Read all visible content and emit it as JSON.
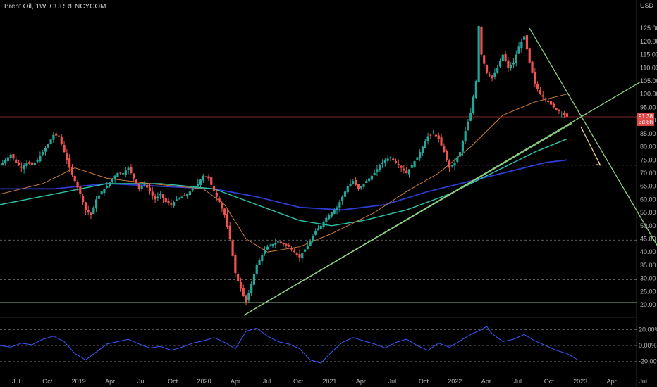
{
  "header": {
    "title": "Brent Oil, 1W, CURRENCYCOM"
  },
  "colors": {
    "up": "#26a69a",
    "down": "#ef5350",
    "grid": "#2a2a2a",
    "trend": "#8ed081",
    "ma_short": "#c77b3c",
    "ma_mid": "#2ec4a8",
    "ma_long": "#2f3ccf",
    "osc": "#3e57ff",
    "arrow": "#f2e29b",
    "price_line": "#7a2a2a"
  },
  "chart_data": {
    "type": "line",
    "title": "Brent Oil, 1W, CURRENCYCOM",
    "currency": "USD",
    "price_axis": {
      "ticks": [
        "125.00",
        "120.00",
        "115.00",
        "110.00",
        "105.00",
        "100.00",
        "95.00",
        "90.00",
        "85.00",
        "80.00",
        "75.00",
        "70.00",
        "65.00",
        "60.00",
        "55.00",
        "50.00",
        "45.00",
        "40.00",
        "35.00",
        "30.00",
        "25.00",
        "20.00"
      ],
      "range": [
        16,
        132
      ]
    },
    "time_axis": {
      "labels": [
        "Jul",
        "Oct",
        "2019",
        "Apr",
        "Jul",
        "Oct",
        "2020",
        "Apr",
        "Jul",
        "Oct",
        "2021",
        "Apr",
        "Jul",
        "Oct",
        "2022",
        "Apr",
        "Jul",
        "Oct",
        "2023",
        "Apr",
        "Jul"
      ],
      "range": [
        0,
        59.5
      ]
    },
    "last_price": {
      "value": "91.38",
      "countdown": "3d 8h",
      "numeric": 91.38
    },
    "horizontal_levels": [
      {
        "price": 73,
        "style": "dashed"
      },
      {
        "price": 44.5,
        "style": "dashed"
      },
      {
        "price": 29.5,
        "style": "dashed"
      },
      {
        "price": 20.8,
        "style": "solid"
      }
    ],
    "price_path": [
      [
        0,
        73
      ],
      [
        0.5,
        75
      ],
      [
        1,
        77
      ],
      [
        1.5,
        74
      ],
      [
        2,
        72
      ],
      [
        2.5,
        74
      ],
      [
        3,
        73
      ],
      [
        3.5,
        75
      ],
      [
        4,
        78
      ],
      [
        4.5,
        81
      ],
      [
        5,
        84.5
      ],
      [
        5.5,
        84
      ],
      [
        6,
        78
      ],
      [
        6.5,
        72
      ],
      [
        7,
        67
      ],
      [
        7.5,
        62
      ],
      [
        8,
        56
      ],
      [
        8.5,
        54
      ],
      [
        9,
        60
      ],
      [
        9.5,
        63
      ],
      [
        10,
        65
      ],
      [
        10.5,
        68
      ],
      [
        11,
        70
      ],
      [
        11.5,
        70
      ],
      [
        12,
        72
      ],
      [
        12.5,
        68
      ],
      [
        13,
        64
      ],
      [
        13.5,
        66
      ],
      [
        14,
        63
      ],
      [
        14.5,
        60
      ],
      [
        15,
        62
      ],
      [
        15.5,
        59
      ],
      [
        16,
        58
      ],
      [
        16.5,
        60
      ],
      [
        17,
        61
      ],
      [
        17.5,
        62
      ],
      [
        18,
        64
      ],
      [
        18.5,
        66
      ],
      [
        19,
        69
      ],
      [
        19.5,
        68
      ],
      [
        20,
        63
      ],
      [
        20.5,
        59
      ],
      [
        21,
        54
      ],
      [
        21.5,
        45
      ],
      [
        22,
        32
      ],
      [
        22.5,
        26
      ],
      [
        23,
        21
      ],
      [
        23.5,
        28
      ],
      [
        24,
        35
      ],
      [
        24.5,
        39
      ],
      [
        25,
        42
      ],
      [
        25.5,
        43
      ],
      [
        26,
        44
      ],
      [
        26.5,
        43
      ],
      [
        27,
        42
      ],
      [
        27.5,
        40
      ],
      [
        28,
        38
      ],
      [
        28.5,
        41
      ],
      [
        29,
        44
      ],
      [
        29.5,
        48
      ],
      [
        30,
        50
      ],
      [
        30.5,
        53
      ],
      [
        31,
        55
      ],
      [
        31.5,
        57
      ],
      [
        32,
        61
      ],
      [
        32.5,
        65
      ],
      [
        33,
        67
      ],
      [
        33.5,
        64
      ],
      [
        34,
        66
      ],
      [
        34.5,
        68
      ],
      [
        35,
        70
      ],
      [
        35.5,
        73
      ],
      [
        36,
        75
      ],
      [
        36.5,
        76
      ],
      [
        37,
        74
      ],
      [
        37.5,
        72
      ],
      [
        38,
        70
      ],
      [
        38.5,
        73
      ],
      [
        39,
        76
      ],
      [
        39.5,
        80
      ],
      [
        40,
        84
      ],
      [
        40.5,
        85
      ],
      [
        41,
        83
      ],
      [
        41.5,
        78
      ],
      [
        42,
        72
      ],
      [
        42.5,
        74
      ],
      [
        43,
        78
      ],
      [
        43.5,
        86
      ],
      [
        44,
        93
      ],
      [
        44.5,
        105
      ],
      [
        44.7,
        128
      ],
      [
        45,
        115
      ],
      [
        45.5,
        108
      ],
      [
        46,
        106
      ],
      [
        46.5,
        110
      ],
      [
        47,
        115
      ],
      [
        47.5,
        110
      ],
      [
        48,
        112
      ],
      [
        48.5,
        118
      ],
      [
        49,
        122
      ],
      [
        49.5,
        112
      ],
      [
        50,
        104
      ],
      [
        50.5,
        100
      ],
      [
        51,
        98
      ],
      [
        51.5,
        96
      ],
      [
        52,
        94
      ],
      [
        52.5,
        93
      ],
      [
        53,
        91.4
      ]
    ],
    "ma_short_path": [
      [
        0,
        62
      ],
      [
        4,
        66
      ],
      [
        7,
        72
      ],
      [
        10,
        68
      ],
      [
        14,
        66
      ],
      [
        19,
        64
      ],
      [
        21,
        58
      ],
      [
        23,
        45
      ],
      [
        25,
        40
      ],
      [
        28,
        42
      ],
      [
        31,
        47
      ],
      [
        35,
        55
      ],
      [
        38,
        63
      ],
      [
        41,
        70
      ],
      [
        44,
        80
      ],
      [
        47,
        92
      ],
      [
        50,
        97
      ],
      [
        53,
        100
      ]
    ],
    "ma_mid_path": [
      [
        0,
        58
      ],
      [
        5,
        62
      ],
      [
        10,
        66
      ],
      [
        15,
        66
      ],
      [
        20,
        64
      ],
      [
        24,
        58
      ],
      [
        28,
        52
      ],
      [
        31,
        50
      ],
      [
        34,
        52
      ],
      [
        38,
        56
      ],
      [
        42,
        62
      ],
      [
        46,
        70
      ],
      [
        50,
        78
      ],
      [
        53,
        83
      ]
    ],
    "ma_long_path": [
      [
        0,
        64
      ],
      [
        5,
        64
      ],
      [
        10,
        66
      ],
      [
        15,
        65
      ],
      [
        20,
        64
      ],
      [
        24,
        61
      ],
      [
        28,
        57
      ],
      [
        32,
        56
      ],
      [
        36,
        58
      ],
      [
        40,
        63
      ],
      [
        44,
        67
      ],
      [
        48,
        71
      ],
      [
        51,
        74
      ],
      [
        53,
        75
      ]
    ],
    "trendlines": [
      {
        "from": [
          22.8,
          16
        ],
        "to": [
          59.8,
          104.5
        ]
      },
      {
        "from": [
          22.8,
          16
        ],
        "to": [
          53.5,
          89
        ]
      },
      {
        "from": [
          49.5,
          125
        ],
        "to": [
          61.5,
          42
        ]
      }
    ],
    "arrow_path": [
      [
        54.3,
        87.5
      ],
      [
        55.5,
        78
      ],
      [
        56.1,
        73
      ]
    ],
    "oscillator": {
      "ticks": [
        "20.00%",
        "0.00%",
        "-20.00%"
      ],
      "range": [
        -30,
        32
      ],
      "path": [
        [
          0,
          0
        ],
        [
          1,
          -2
        ],
        [
          2,
          3
        ],
        [
          3,
          1
        ],
        [
          4,
          8
        ],
        [
          5,
          12
        ],
        [
          6,
          5
        ],
        [
          7,
          -10
        ],
        [
          8,
          -18
        ],
        [
          9,
          -8
        ],
        [
          10,
          2
        ],
        [
          11,
          5
        ],
        [
          12,
          8
        ],
        [
          13,
          2
        ],
        [
          14,
          -3
        ],
        [
          15,
          -1
        ],
        [
          16,
          -6
        ],
        [
          17,
          -2
        ],
        [
          18,
          3
        ],
        [
          19,
          6
        ],
        [
          20,
          10
        ],
        [
          21,
          4
        ],
        [
          22,
          -4
        ],
        [
          23,
          18
        ],
        [
          24,
          22
        ],
        [
          25,
          12
        ],
        [
          26,
          5
        ],
        [
          27,
          2
        ],
        [
          28,
          -4
        ],
        [
          29,
          -18
        ],
        [
          30,
          -22
        ],
        [
          31,
          -8
        ],
        [
          32,
          4
        ],
        [
          33,
          10
        ],
        [
          34,
          6
        ],
        [
          35,
          2
        ],
        [
          36,
          -3
        ],
        [
          37,
          4
        ],
        [
          38,
          8
        ],
        [
          39,
          0
        ],
        [
          40,
          -6
        ],
        [
          41,
          3
        ],
        [
          42,
          -2
        ],
        [
          43,
          6
        ],
        [
          44,
          14
        ],
        [
          45,
          20
        ],
        [
          45.5,
          24
        ],
        [
          46,
          15
        ],
        [
          47,
          5
        ],
        [
          48,
          8
        ],
        [
          49,
          14
        ],
        [
          50,
          6
        ],
        [
          51,
          0
        ],
        [
          52,
          -6
        ],
        [
          53,
          -10
        ],
        [
          54,
          -18
        ]
      ]
    }
  }
}
